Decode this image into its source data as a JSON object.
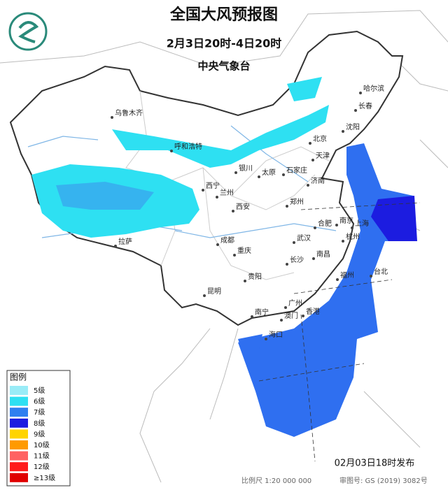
{
  "header": {
    "title": "全国大风预报图",
    "period": "2月3日20时-4日20时",
    "agency": "中央气象台"
  },
  "cities": [
    "乌鲁木齐",
    "哈尔滨",
    "长春",
    "沈阳",
    "北京",
    "天津",
    "呼和浩特",
    "石家庄",
    "太原",
    "济南",
    "银川",
    "西宁",
    "兰州",
    "郑州",
    "西安",
    "合肥",
    "南京",
    "上海",
    "杭州",
    "成都",
    "武汉",
    "重庆",
    "长沙",
    "南昌",
    "拉萨",
    "福州",
    "台北",
    "贵阳",
    "昆明",
    "南宁",
    "广州",
    "澳门",
    "香港",
    "海口"
  ],
  "legend": {
    "title": "图例",
    "items": [
      {
        "label": "5级",
        "color": "#99ecf7"
      },
      {
        "label": "6级",
        "color": "#2ee0f2"
      },
      {
        "label": "7级",
        "color": "#2f7ff0"
      },
      {
        "label": "8级",
        "color": "#1c1ce0"
      },
      {
        "label": "9级",
        "color": "#ffd400"
      },
      {
        "label": "10级",
        "color": "#ff9a00"
      },
      {
        "label": "11级",
        "color": "#ff6262"
      },
      {
        "label": "12级",
        "color": "#ff1a1a"
      },
      {
        "label": "≥13级",
        "color": "#e00000"
      }
    ]
  },
  "footer": {
    "issued": "02月03日18时发布",
    "scale": "比例尺  1:20 000 000",
    "review": "审图号: GS (2019) 3082号"
  }
}
